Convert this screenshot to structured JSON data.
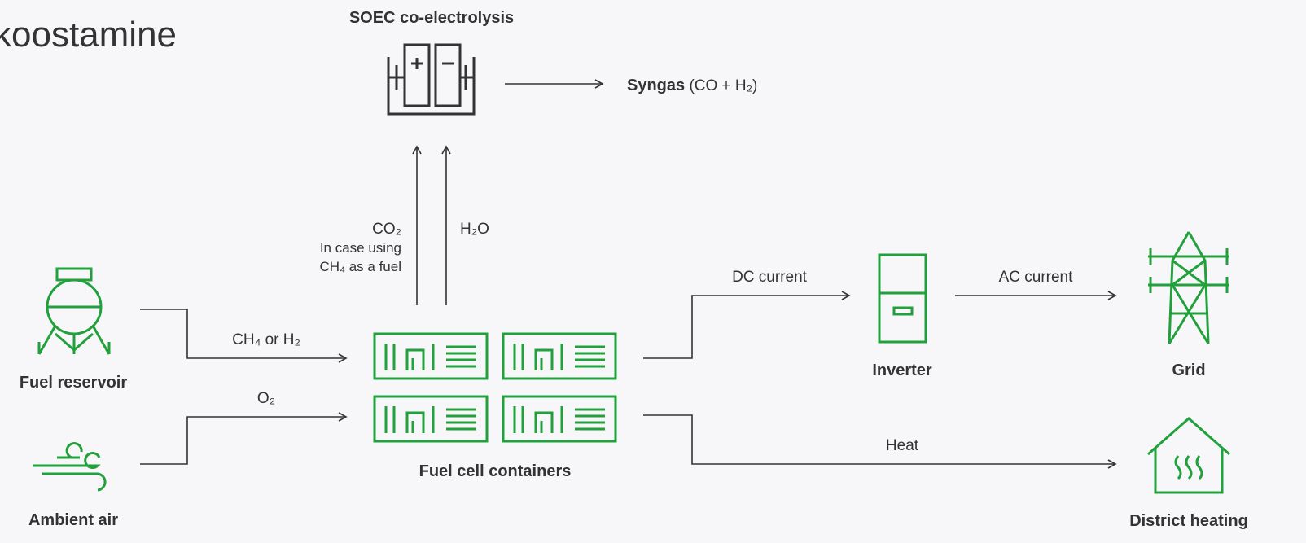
{
  "title": "koostamine",
  "nodes": [
    {
      "label": "SOEC co-electrolysis"
    },
    {
      "label": "Fuel reservoir"
    },
    {
      "label": "Ambient air"
    },
    {
      "label": "Fuel cell containers"
    },
    {
      "label": "Inverter"
    },
    {
      "label": "Grid"
    },
    {
      "label": "District heating"
    }
  ],
  "outputs": {
    "syngas": "Syngas",
    "syngas_formula": "(CO + H₂)"
  },
  "edges": [
    {
      "label": "CO₂",
      "note": [
        "In case using",
        "CH₄ as a fuel"
      ]
    },
    {
      "label": "H₂O"
    },
    {
      "label": "CH₄ or H₂"
    },
    {
      "label": "O₂"
    },
    {
      "label": "DC current"
    },
    {
      "label": "AC current"
    },
    {
      "label": "Heat"
    }
  ]
}
